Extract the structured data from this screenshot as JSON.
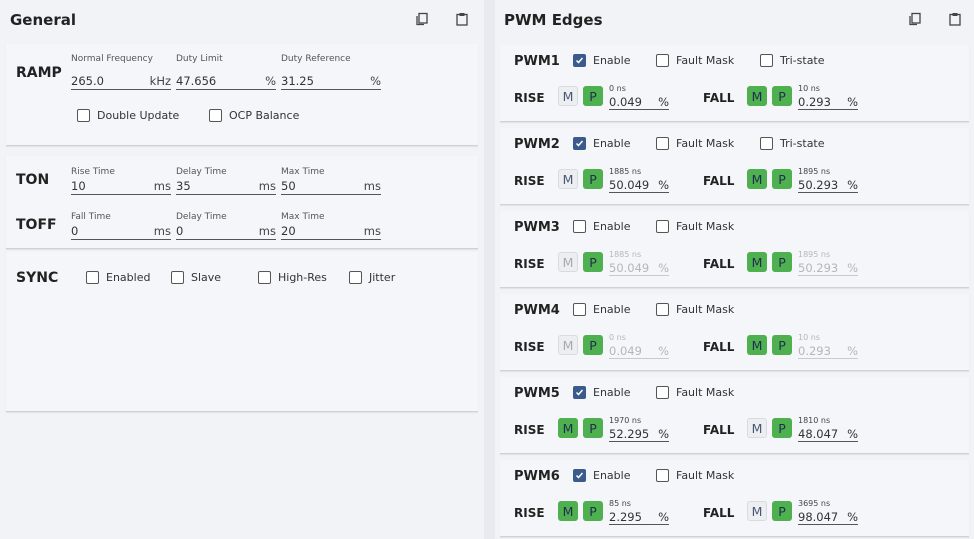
{
  "general": {
    "title": "General",
    "copy_icon": "copy-icon",
    "paste_icon": "clipboard-icon",
    "ramp": {
      "label": "RAMP",
      "normal_frequency": {
        "label": "Normal Frequency",
        "value": "265.0",
        "unit": "kHz"
      },
      "duty_limit": {
        "label": "Duty Limit",
        "value": "47.656",
        "unit": "%"
      },
      "duty_reference": {
        "label": "Duty Reference",
        "value": "31.25",
        "unit": "%"
      },
      "double_update": {
        "label": "Double Update",
        "checked": false
      },
      "ocp_balance": {
        "label": "OCP Balance",
        "checked": false
      }
    },
    "ton": {
      "label": "TON",
      "rise_time": {
        "label": "Rise Time",
        "value": "10",
        "unit": "ms"
      },
      "delay_time": {
        "label": "Delay Time",
        "value": "35",
        "unit": "ms"
      },
      "max_time": {
        "label": "Max Time",
        "value": "50",
        "unit": "ms"
      }
    },
    "toff": {
      "label": "TOFF",
      "fall_time": {
        "label": "Fall Time",
        "value": "0",
        "unit": "ms"
      },
      "delay_time": {
        "label": "Delay Time",
        "value": "0",
        "unit": "ms"
      },
      "max_time": {
        "label": "Max Time",
        "value": "20",
        "unit": "ms"
      }
    },
    "sync": {
      "label": "SYNC",
      "options": [
        {
          "label": "Enabled",
          "checked": false
        },
        {
          "label": "Slave",
          "checked": false
        },
        {
          "label": "High-Res",
          "checked": false
        },
        {
          "label": "Jitter",
          "checked": false
        }
      ]
    }
  },
  "pwm_edges": {
    "title": "PWM Edges",
    "copy_icon": "copy-icon",
    "paste_icon": "clipboard-icon",
    "labels": {
      "enable": "Enable",
      "fault_mask": "Fault Mask",
      "tri_state": "Tri-state",
      "rise": "RISE",
      "fall": "FALL",
      "m": "M",
      "p": "P",
      "percent": "%"
    },
    "channels": [
      {
        "name": "PWM1",
        "enable": true,
        "fault_mask": false,
        "tri_state": false,
        "has_tri_state": true,
        "rise": {
          "m_active": false,
          "p_active": true,
          "ns": "0 ns",
          "value": "0.049"
        },
        "fall": {
          "m_active": true,
          "p_active": true,
          "ns": "10 ns",
          "value": "0.293"
        }
      },
      {
        "name": "PWM2",
        "enable": true,
        "fault_mask": false,
        "tri_state": false,
        "has_tri_state": true,
        "rise": {
          "m_active": false,
          "p_active": true,
          "ns": "1885 ns",
          "value": "50.049"
        },
        "fall": {
          "m_active": true,
          "p_active": true,
          "ns": "1895 ns",
          "value": "50.293"
        }
      },
      {
        "name": "PWM3",
        "enable": false,
        "fault_mask": false,
        "has_tri_state": false,
        "rise": {
          "m_active": false,
          "p_active": true,
          "ns": "1885 ns",
          "value": "50.049"
        },
        "fall": {
          "m_active": true,
          "p_active": true,
          "ns": "1895 ns",
          "value": "50.293"
        }
      },
      {
        "name": "PWM4",
        "enable": false,
        "fault_mask": false,
        "has_tri_state": false,
        "rise": {
          "m_active": false,
          "p_active": true,
          "ns": "0 ns",
          "value": "0.049"
        },
        "fall": {
          "m_active": true,
          "p_active": true,
          "ns": "10 ns",
          "value": "0.293"
        }
      },
      {
        "name": "PWM5",
        "enable": true,
        "fault_mask": false,
        "has_tri_state": false,
        "rise": {
          "m_active": true,
          "p_active": true,
          "ns": "1970 ns",
          "value": "52.295"
        },
        "fall": {
          "m_active": false,
          "p_active": true,
          "ns": "1810 ns",
          "value": "48.047"
        }
      },
      {
        "name": "PWM6",
        "enable": true,
        "fault_mask": false,
        "has_tri_state": false,
        "rise": {
          "m_active": true,
          "p_active": true,
          "ns": "85 ns",
          "value": "2.295"
        },
        "fall": {
          "m_active": false,
          "p_active": true,
          "ns": "3695 ns",
          "value": "98.047"
        }
      }
    ]
  },
  "colors": {
    "accent_green": "#4fb04f",
    "checkbox_blue": "#3a5b8c",
    "panel_bg": "#f2f3f7"
  }
}
